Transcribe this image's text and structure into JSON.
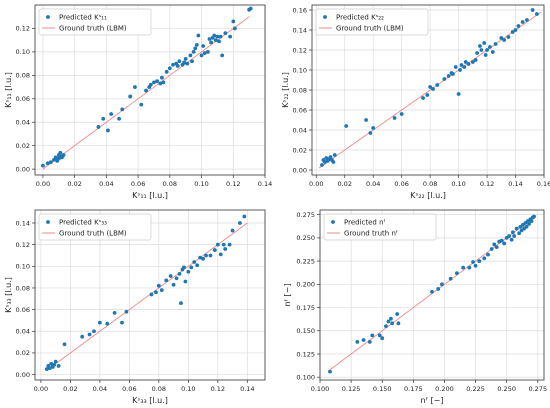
{
  "chart_data": [
    {
      "type": "scatter",
      "xlabel": "Kˢ₁₁ [l.u.]",
      "ylabel": "Kˢ₁₁ [l.u.]",
      "xlim": [
        -0.005,
        0.14
      ],
      "ylim": [
        -0.005,
        0.14
      ],
      "xticks": [
        "0.00",
        "0.02",
        "0.04",
        "0.06",
        "0.08",
        "0.10",
        "0.12",
        "0.14"
      ],
      "yticks": [
        "0.00",
        "0.02",
        "0.04",
        "0.06",
        "0.08",
        "0.10",
        "0.12"
      ],
      "xtick_values": [
        0,
        0.02,
        0.04,
        0.06,
        0.08,
        0.1,
        0.12,
        0.14
      ],
      "ytick_values": [
        0,
        0.02,
        0.04,
        0.06,
        0.08,
        0.1,
        0.12
      ],
      "grid": true,
      "legend_position": "top-left",
      "series": [
        {
          "name": "Predicted Kˢ₁₁",
          "color": "#1f77b4",
          "x": [
            0.0,
            0.003,
            0.005,
            0.007,
            0.008,
            0.009,
            0.01,
            0.01,
            0.011,
            0.011,
            0.012,
            0.013,
            0.035,
            0.038,
            0.041,
            0.043,
            0.048,
            0.05,
            0.055,
            0.058,
            0.062,
            0.065,
            0.067,
            0.068,
            0.07,
            0.072,
            0.074,
            0.075,
            0.076,
            0.078,
            0.08,
            0.082,
            0.084,
            0.085,
            0.086,
            0.088,
            0.089,
            0.09,
            0.091,
            0.093,
            0.094,
            0.095,
            0.096,
            0.097,
            0.098,
            0.1,
            0.101,
            0.102,
            0.104,
            0.105,
            0.106,
            0.107,
            0.108,
            0.109,
            0.11,
            0.111,
            0.112,
            0.113,
            0.115,
            0.118,
            0.12,
            0.121,
            0.13,
            0.131
          ],
          "y": [
            0.003,
            0.005,
            0.006,
            0.008,
            0.01,
            0.007,
            0.012,
            0.009,
            0.011,
            0.014,
            0.01,
            0.012,
            0.036,
            0.043,
            0.033,
            0.047,
            0.043,
            0.051,
            0.062,
            0.07,
            0.055,
            0.067,
            0.07,
            0.072,
            0.074,
            0.075,
            0.073,
            0.078,
            0.074,
            0.083,
            0.086,
            0.089,
            0.09,
            0.088,
            0.092,
            0.089,
            0.091,
            0.094,
            0.09,
            0.097,
            0.092,
            0.1,
            0.103,
            0.106,
            0.114,
            0.097,
            0.105,
            0.099,
            0.1,
            0.111,
            0.108,
            0.112,
            0.114,
            0.11,
            0.113,
            0.109,
            0.113,
            0.097,
            0.116,
            0.113,
            0.126,
            0.12,
            0.136,
            0.137
          ]
        },
        {
          "name": "Ground truth (LBM)",
          "color": "#f08a8a",
          "line": [
            [
              0,
              0
            ],
            [
              0.13,
              0.13
            ]
          ]
        }
      ]
    },
    {
      "type": "scatter",
      "xlabel": "Kˢ₂₂ [l.u.]",
      "ylabel": "Kˢ₂₂ [l.u.]",
      "xlim": [
        -0.003,
        0.16
      ],
      "ylim": [
        -0.005,
        0.165
      ],
      "xticks": [
        "0.00",
        "0.02",
        "0.04",
        "0.06",
        "0.08",
        "0.10",
        "0.12",
        "0.14",
        "0.16"
      ],
      "yticks": [
        "0.00",
        "0.02",
        "0.04",
        "0.06",
        "0.08",
        "0.10",
        "0.12",
        "0.14",
        "0.16"
      ],
      "xtick_values": [
        0,
        0.02,
        0.04,
        0.06,
        0.08,
        0.1,
        0.12,
        0.14,
        0.16
      ],
      "ytick_values": [
        0,
        0.02,
        0.04,
        0.06,
        0.08,
        0.1,
        0.12,
        0.14,
        0.16
      ],
      "grid": true,
      "legend_position": "top-left",
      "series": [
        {
          "name": "Predicted Kˢ₂₂",
          "color": "#1f77b4",
          "x": [
            0.004,
            0.005,
            0.006,
            0.007,
            0.008,
            0.009,
            0.01,
            0.011,
            0.012,
            0.013,
            0.021,
            0.035,
            0.038,
            0.04,
            0.055,
            0.06,
            0.075,
            0.078,
            0.08,
            0.082,
            0.085,
            0.09,
            0.093,
            0.095,
            0.096,
            0.098,
            0.1,
            0.101,
            0.102,
            0.104,
            0.105,
            0.107,
            0.11,
            0.112,
            0.113,
            0.115,
            0.116,
            0.118,
            0.119,
            0.12,
            0.122,
            0.124,
            0.126,
            0.13,
            0.132,
            0.135,
            0.138,
            0.14,
            0.142,
            0.145,
            0.148,
            0.152,
            0.155
          ],
          "y": [
            0.005,
            0.01,
            0.008,
            0.012,
            0.009,
            0.011,
            0.013,
            0.01,
            0.008,
            0.015,
            0.044,
            0.05,
            0.037,
            0.042,
            0.052,
            0.056,
            0.072,
            0.075,
            0.083,
            0.081,
            0.085,
            0.091,
            0.094,
            0.097,
            0.096,
            0.103,
            0.076,
            0.1,
            0.105,
            0.103,
            0.108,
            0.106,
            0.108,
            0.11,
            0.117,
            0.124,
            0.12,
            0.127,
            0.115,
            0.12,
            0.123,
            0.118,
            0.126,
            0.132,
            0.13,
            0.133,
            0.138,
            0.14,
            0.144,
            0.148,
            0.15,
            0.16,
            0.156
          ]
        },
        {
          "name": "Ground truth (LBM)",
          "color": "#f08a8a",
          "line": [
            [
              0.002,
              0.002
            ],
            [
              0.158,
              0.158
            ]
          ]
        }
      ]
    },
    {
      "type": "scatter",
      "xlabel": "Kˢ₃₃ [l.u.]",
      "ylabel": "Kˢ₃₃ [l.u.]",
      "xlim": [
        -0.004,
        0.152
      ],
      "ylim": [
        -0.005,
        0.152
      ],
      "xticks": [
        "0.00",
        "0.02",
        "0.04",
        "0.06",
        "0.08",
        "0.10",
        "0.12",
        "0.14"
      ],
      "yticks": [
        "0.00",
        "0.02",
        "0.04",
        "0.06",
        "0.08",
        "0.10",
        "0.12",
        "0.14"
      ],
      "xtick_values": [
        0,
        0.02,
        0.04,
        0.06,
        0.08,
        0.1,
        0.12,
        0.14
      ],
      "ytick_values": [
        0,
        0.02,
        0.04,
        0.06,
        0.08,
        0.1,
        0.12,
        0.14
      ],
      "grid": true,
      "legend_position": "top-left",
      "series": [
        {
          "name": "Predicted Kˢ₃₃",
          "color": "#1f77b4",
          "x": [
            0.004,
            0.005,
            0.006,
            0.007,
            0.008,
            0.009,
            0.01,
            0.012,
            0.016,
            0.028,
            0.033,
            0.036,
            0.04,
            0.045,
            0.05,
            0.055,
            0.058,
            0.075,
            0.078,
            0.08,
            0.082,
            0.085,
            0.088,
            0.09,
            0.092,
            0.094,
            0.095,
            0.096,
            0.097,
            0.098,
            0.1,
            0.102,
            0.104,
            0.106,
            0.108,
            0.11,
            0.112,
            0.115,
            0.118,
            0.12,
            0.122,
            0.124,
            0.125,
            0.128,
            0.13,
            0.135,
            0.138
          ],
          "y": [
            0.005,
            0.008,
            0.006,
            0.01,
            0.007,
            0.009,
            0.012,
            0.008,
            0.028,
            0.035,
            0.037,
            0.04,
            0.048,
            0.047,
            0.057,
            0.048,
            0.058,
            0.074,
            0.076,
            0.082,
            0.078,
            0.087,
            0.091,
            0.083,
            0.089,
            0.093,
            0.066,
            0.097,
            0.099,
            0.086,
            0.095,
            0.099,
            0.104,
            0.101,
            0.108,
            0.107,
            0.11,
            0.11,
            0.115,
            0.12,
            0.111,
            0.12,
            0.116,
            0.12,
            0.133,
            0.14,
            0.146
          ]
        },
        {
          "name": "Ground truth (LBM)",
          "color": "#f08a8a",
          "line": [
            [
              0.004,
              0.004
            ],
            [
              0.14,
              0.14
            ]
          ]
        }
      ]
    },
    {
      "type": "scatter",
      "xlabel": "nᶠ [−]",
      "ylabel": "nᶠ [−]",
      "xlim": [
        0.1,
        0.28
      ],
      "ylim": [
        0.097,
        0.28
      ],
      "xticks": [
        "0.100",
        "0.125",
        "0.150",
        "0.175",
        "0.200",
        "0.225",
        "0.250",
        "0.275"
      ],
      "yticks": [
        "0.100",
        "0.125",
        "0.150",
        "0.175",
        "0.200",
        "0.225",
        "0.250",
        "0.275"
      ],
      "xtick_values": [
        0.1,
        0.125,
        0.15,
        0.175,
        0.2,
        0.225,
        0.25,
        0.275
      ],
      "ytick_values": [
        0.1,
        0.125,
        0.15,
        0.175,
        0.2,
        0.225,
        0.25,
        0.275
      ],
      "grid": true,
      "legend_position": "top-left",
      "series": [
        {
          "name": "Predicted nᶠ",
          "color": "#1f77b4",
          "x": [
            0.108,
            0.13,
            0.135,
            0.14,
            0.142,
            0.148,
            0.15,
            0.153,
            0.155,
            0.157,
            0.158,
            0.162,
            0.163,
            0.19,
            0.195,
            0.198,
            0.205,
            0.21,
            0.215,
            0.22,
            0.223,
            0.225,
            0.228,
            0.232,
            0.235,
            0.238,
            0.24,
            0.242,
            0.244,
            0.246,
            0.248,
            0.25,
            0.252,
            0.254,
            0.255,
            0.256,
            0.258,
            0.26,
            0.261,
            0.262,
            0.263,
            0.264,
            0.265,
            0.266,
            0.267,
            0.268,
            0.269,
            0.27,
            0.271,
            0.272
          ],
          "y": [
            0.106,
            0.138,
            0.14,
            0.138,
            0.145,
            0.145,
            0.142,
            0.155,
            0.16,
            0.163,
            0.158,
            0.168,
            0.158,
            0.192,
            0.195,
            0.2,
            0.206,
            0.212,
            0.218,
            0.218,
            0.224,
            0.22,
            0.225,
            0.228,
            0.232,
            0.238,
            0.243,
            0.24,
            0.246,
            0.247,
            0.244,
            0.25,
            0.252,
            0.248,
            0.256,
            0.252,
            0.26,
            0.255,
            0.262,
            0.258,
            0.264,
            0.26,
            0.266,
            0.262,
            0.268,
            0.265,
            0.27,
            0.268,
            0.272,
            0.273
          ]
        },
        {
          "name": "Ground truth nᶠ",
          "color": "#f08a8a",
          "line": [
            [
              0.108,
              0.108
            ],
            [
              0.272,
              0.272
            ]
          ]
        }
      ]
    }
  ]
}
